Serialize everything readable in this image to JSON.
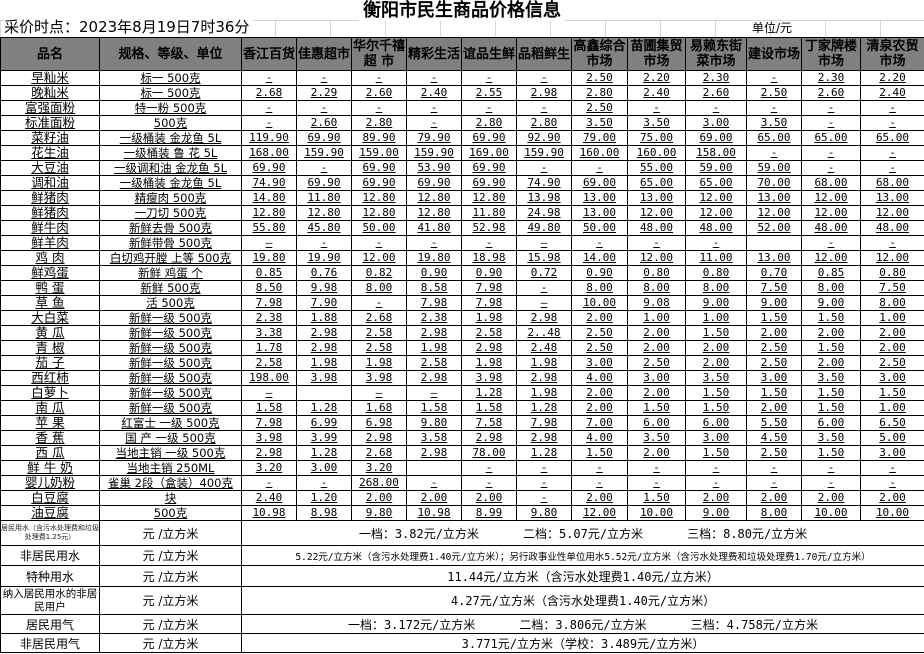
{
  "title": "衡阳市民生商品价格信息",
  "collect_time": "采价时点：2023年8月19日7时36分",
  "unit": "单位/元",
  "headers": [
    "品名",
    "规格、等级、单位",
    "香江百货",
    "佳惠超市",
    "华尔千禧超 市",
    "精彩生活",
    "谊品生鲜",
    "品稻鲜生",
    "高鑫综合市场",
    "苗圃集贸市场",
    "易赖东街菜市场",
    "建设市场",
    "丁家牌楼市场",
    "清泉农贸市场"
  ],
  "rows": [
    {
      "name": "早籼米",
      "spec": "标一 500克",
      "prices": [
        "-",
        "-",
        "-",
        "-",
        "-",
        "-",
        "2.50",
        "2.20",
        "2.30",
        "-",
        "2.30",
        "2.20"
      ]
    },
    {
      "name": "晚籼米",
      "spec": "标一 500克",
      "prices": [
        "2.68",
        "2.29",
        "2.60",
        "2.40",
        "2.55",
        "2.98",
        "2.80",
        "2.40",
        "2.60",
        "2.50",
        "2.60",
        "2.40"
      ]
    },
    {
      "name": "富强面粉",
      "spec": "特一粉  500克",
      "prices": [
        "-",
        "-",
        "-",
        "-",
        "-",
        "-",
        "2.50",
        "-",
        "-",
        "-",
        "-",
        "-"
      ]
    },
    {
      "name": "标准面粉",
      "spec": "500克",
      "prices": [
        "-",
        "2.60",
        "2.80",
        "-",
        "2.80",
        "2.80",
        "3.50",
        "3.50",
        "3.00",
        "3.50",
        "-",
        "-"
      ]
    },
    {
      "name": "菜籽油",
      "spec": "一级桶装  金龙鱼  5L",
      "prices": [
        "119.90",
        "69.90",
        "89.90",
        "79.90",
        "69.90",
        "92.90",
        "79.00",
        "75.00",
        "69.00",
        "65.00",
        "65.00",
        "65.00"
      ]
    },
    {
      "name": "花生油",
      "spec": "一级桶装  鲁  花  5L",
      "prices": [
        "168.00",
        "159.90",
        "159.00",
        "159.90",
        "169.00",
        "159.90",
        "160.00",
        "160.00",
        "158.00",
        "-",
        "-",
        "-"
      ]
    },
    {
      "name": "大豆油",
      "spec": "一级调和油 金龙鱼  5L",
      "prices": [
        "69.90",
        "-",
        "69.90",
        "53.90",
        "69.90",
        "-",
        "-",
        "55.00",
        "59.00",
        "59.00",
        "-",
        "-"
      ]
    },
    {
      "name": "调和油",
      "spec": "一级桶装  金龙鱼  5L",
      "prices": [
        "74.90",
        "69.90",
        "69.90",
        "69.90",
        "69.90",
        "74.90",
        "69.00",
        "65.00",
        "65.00",
        "70.00",
        "68.00",
        "68.00"
      ]
    },
    {
      "name": "鲜猪肉",
      "spec": "精瘦肉  500克",
      "prices": [
        "14.80",
        "11.80",
        "12.80",
        "12.80",
        "12.80",
        "13.98",
        "13.00",
        "13.00",
        "12.00",
        "13.00",
        "12.00",
        "13.00"
      ]
    },
    {
      "name": "鲜猪肉",
      "spec": "一刀切  500克",
      "prices": [
        "12.80",
        "12.80",
        "12.80",
        "12.80",
        "11.80",
        "24.98",
        "13.00",
        "12.00",
        "12.00",
        "12.00",
        "12.00",
        "12.00"
      ]
    },
    {
      "name": "鲜牛肉",
      "spec": "新鲜去骨 500克",
      "prices": [
        "55.80",
        "45.80",
        "50.00",
        "41.80",
        "52.98",
        "49.80",
        "50.00",
        "48.00",
        "48.00",
        "52.00",
        "48.00",
        "48.00"
      ]
    },
    {
      "name": "鲜羊肉",
      "spec": "新鲜带骨 500克",
      "prices": [
        "—",
        "-",
        "-",
        "-",
        "-",
        "—",
        "-",
        "-",
        "-",
        "",
        "-",
        "-"
      ]
    },
    {
      "name": "鸡  肉",
      "spec": "白切鸡开膛 上等 500克",
      "prices": [
        "19.80",
        "19.90",
        "12.00",
        "19.80",
        "18.98",
        "15.98",
        "14.00",
        "12.00",
        "11.00",
        "13.00",
        "12.00",
        "12.00"
      ]
    },
    {
      "name": "鲜鸡蛋",
      "spec": "新鲜 鸡蛋  个",
      "prices": [
        "0.85",
        "0.76",
        "0.82",
        "0.90",
        "0.90",
        "0.72",
        "0.90",
        "0.80",
        "0.80",
        "0.70",
        "0.85",
        "0.80"
      ]
    },
    {
      "name": "鸭  蛋",
      "spec": "新鲜  500克",
      "prices": [
        "8.50",
        "9.98",
        "8.00",
        "8.58",
        "7.98",
        "-",
        "8.00",
        "8.00",
        "8.00",
        "7.50",
        "8.00",
        "7.50"
      ]
    },
    {
      "name": "草  鱼",
      "spec": "活  500克",
      "prices": [
        "7.98",
        "7.90",
        "-",
        "7.98",
        "7.98",
        "—",
        "10.00",
        "9.08",
        "9.00",
        "9.00",
        "9.00",
        "8.00"
      ]
    },
    {
      "name": "大白菜",
      "spec": "新鲜一级 500克",
      "prices": [
        "2.38",
        "1.88",
        "2.68",
        "2.38",
        "1.98",
        "2.98",
        "2.00",
        "1.00",
        "1.00",
        "1.50",
        "1.50",
        "1.00"
      ]
    },
    {
      "name": "黄  瓜",
      "spec": "新鲜一级 500克",
      "prices": [
        "3.38",
        "2.98",
        "2.58",
        "2.98",
        "2.58",
        "2..48",
        "2.50",
        "2.00",
        "1.50",
        "2.00",
        "2.00",
        "2.00"
      ]
    },
    {
      "name": "青  椒",
      "spec": "新鲜一级 500克",
      "prices": [
        "1.78",
        "2.98",
        "2.58",
        "1.98",
        "2.98",
        "2.48",
        "2.50",
        "2.00",
        "2.00",
        "2.50",
        "1.50",
        "2.00"
      ]
    },
    {
      "name": "茄  子",
      "spec": "新鲜一级 500克",
      "prices": [
        "2.58",
        "1.98",
        "1.98",
        "2.58",
        "1.98",
        "1.98",
        "3.00",
        "2.50",
        "2.00",
        "2.50",
        "2.00",
        "2.50"
      ]
    },
    {
      "name": "西红柿",
      "spec": "新鲜一级 500克",
      "prices": [
        "198.00",
        "3.98",
        "3.98",
        "2.98",
        "3.98",
        "2.98",
        "4.00",
        "3.00",
        "3.50",
        "3.00",
        "3.50",
        "3.00"
      ]
    },
    {
      "name": "白萝卜",
      "spec": "新鲜一级 500克",
      "prices": [
        "—",
        "",
        "—",
        "—",
        "1.28",
        "1.98",
        "2.00",
        "2.00",
        "1.50",
        "1.50",
        "1.50",
        "1.50"
      ]
    },
    {
      "name": "南  瓜",
      "spec": "新鲜一级 500克",
      "prices": [
        "1.58",
        "1.28",
        "1.68",
        "1.58",
        "1.58",
        "1.28",
        "2.00",
        "1.50",
        "1.50",
        "2.00",
        "1.50",
        "1.00"
      ]
    },
    {
      "name": "苹  果",
      "spec": "红富士  一级  500克",
      "prices": [
        "7.98",
        "6.99",
        "6.98",
        "9.80",
        "7.58",
        "7.98",
        "7.00",
        "6.00",
        "6.00",
        "5.50",
        "6.00",
        "6.50"
      ]
    },
    {
      "name": "香  蕉",
      "spec": "国  产  一级  500克",
      "prices": [
        "3.98",
        "3.99",
        "2.98",
        "3.58",
        "2.98",
        "2.98",
        "4.00",
        "3.50",
        "3.00",
        "4.50",
        "3.50",
        "5.00"
      ]
    },
    {
      "name": "西  瓜",
      "spec": "当地主销 一级  500克",
      "prices": [
        "2.98",
        "1.28",
        "2.68",
        "2.98",
        "78.00",
        "1.28",
        "1.50",
        "2.00",
        "1.50",
        "2.50",
        "1.50",
        "3.00"
      ]
    },
    {
      "name": "鲜 牛 奶",
      "spec": "当地主销  250ML",
      "prices": [
        "3.20",
        "3.00",
        "3.20",
        "",
        "-",
        "-",
        "-",
        "-",
        "-",
        "-",
        "-",
        "-"
      ]
    },
    {
      "name": "婴儿奶粉",
      "spec": "雀巢 2段（盒装）400克",
      "prices": [
        "-",
        "-",
        "268.00",
        "-",
        "-",
        "-",
        "-",
        "-",
        "-",
        "-",
        "-",
        "-"
      ]
    },
    {
      "name": "白豆腐",
      "spec": "块",
      "prices": [
        "2.40",
        "1.20",
        "2.00",
        "2.00",
        "2.00",
        "-",
        "2.00",
        "1.50",
        "2.00",
        "2.00",
        "2.00",
        "2.00"
      ]
    },
    {
      "name": "油豆腐",
      "spec": "500克",
      "prices": [
        "10.98",
        "8.98",
        "9.80",
        "10.98",
        "8.99",
        "9.80",
        "12.00",
        "10.00",
        "9.00",
        "8.00",
        "10.00",
        "10.00"
      ]
    }
  ],
  "utilities": [
    {
      "name": "居民用水（含污水处理费和垃圾处理费1.25元）",
      "unit": "元 /立方米",
      "tiers": [
        "一档：3.82元/立方米",
        "二档：5.07元/立方米",
        "三档：8.80元/立方米"
      ],
      "style": "tiny"
    },
    {
      "name": "非居民用水",
      "unit": "元 /立方米",
      "text": "5.22元/立方米（含污水处理费1.40元/立方米）；另行政事业性单位用水5.52元/立方米（含污水处理费和垃圾处理费1.70元/立方米）",
      "style": "small"
    },
    {
      "name": "特种用水",
      "unit": "元 /立方米",
      "text": "11.44元/立方米（含污水处理费1.40元/立方米）"
    },
    {
      "name": "纳入居民用水的非居民用户",
      "unit": "元 /立方米",
      "text": "4.27元/立方米（含污水处理费1.40元/立方米）",
      "style": "wrap"
    },
    {
      "name": "居民用气",
      "unit": "元 /立方米",
      "tiers": [
        "一档：3.172元/立方米",
        "二档：3.806元/立方米",
        "三档：4.758元/立方米"
      ]
    },
    {
      "name": "非居民用气",
      "unit": "元 /立方米",
      "text": "3.771元/立方米（学校：3.489元/立方米）"
    }
  ]
}
